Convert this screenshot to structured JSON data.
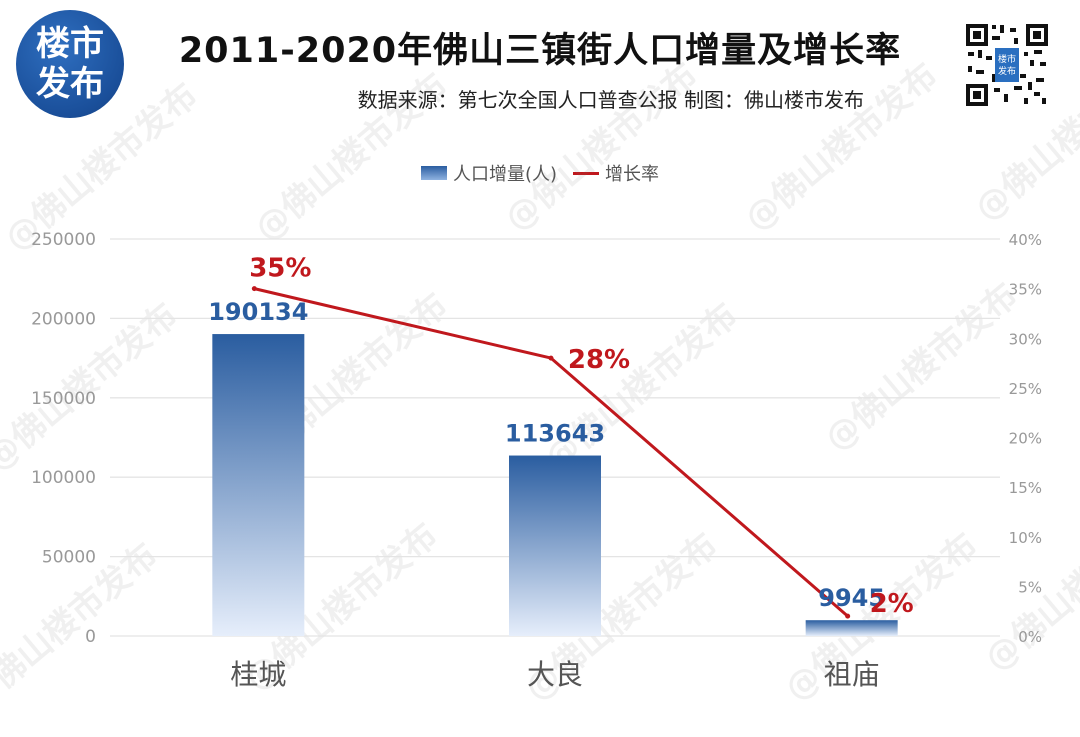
{
  "header": {
    "logo_line1": "楼市",
    "logo_line2": "发布",
    "title": "2011-2020年佛山三镇街人口增量及增长率",
    "subtitle": "数据来源：第七次全国人口普查公报 制图：佛山楼市发布",
    "qr_label": "楼市发布"
  },
  "watermark": "@佛山楼市发布",
  "colors": {
    "bar_top": "#2a5da0",
    "bar_bottom": "#e6eefb",
    "line": "#c0181d",
    "bar_label": "#2a5da0",
    "rate_label": "#c0181d",
    "axis_text": "#999999",
    "category_text": "#555555",
    "grid": "#e4e4e4"
  },
  "chart_data": {
    "type": "bar",
    "categories": [
      "桂城",
      "大良",
      "祖庙"
    ],
    "series": [
      {
        "name": "人口增量(人)",
        "type": "bar",
        "axis": "left",
        "values": [
          190134,
          113643,
          9945
        ],
        "labels": [
          "190134",
          "113643",
          "9945"
        ]
      },
      {
        "name": "增长率",
        "type": "line",
        "axis": "right",
        "values": [
          35,
          28,
          2
        ],
        "labels": [
          "35%",
          "28%",
          "2%"
        ]
      }
    ],
    "ylim_left": [
      0,
      250000
    ],
    "yticks_left": [
      "0",
      "50000",
      "100000",
      "150000",
      "200000",
      "250000"
    ],
    "ylim_right": [
      0,
      40
    ],
    "yticks_right": [
      "0%",
      "5%",
      "10%",
      "15%",
      "20%",
      "25%",
      "30%",
      "35%",
      "40%"
    ],
    "legend": "top-center",
    "grid": true
  }
}
